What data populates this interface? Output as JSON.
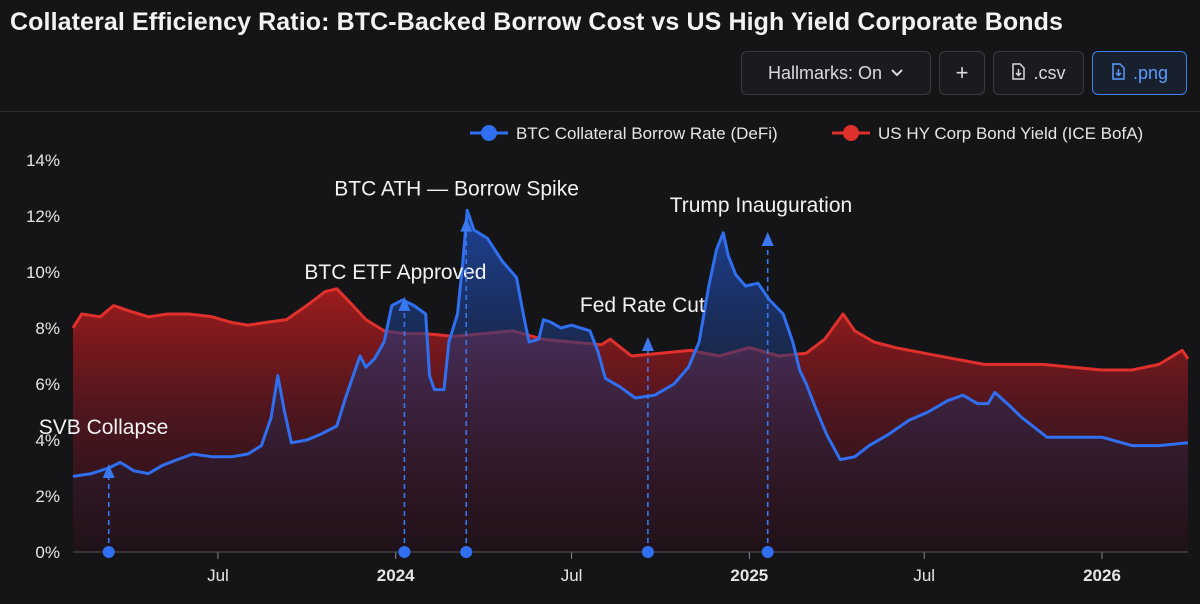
{
  "header": {
    "title": "Collateral Efficiency Ratio: BTC-Backed Borrow Cost vs US High Yield Corporate Bonds"
  },
  "toolbar": {
    "hallmarks_label": "Hallmarks: On",
    "hallmarks_icon": "chevron-down-icon",
    "add_label": "+",
    "csv_label": ".csv",
    "png_label": ".png",
    "download_icon": "download-icon"
  },
  "colors": {
    "background": "#151518",
    "btc": "#2f6ff0",
    "hy": "#e0302c",
    "accent": "#3f7fe8"
  },
  "chart_data": {
    "type": "area",
    "title": "Collateral Efficiency Ratio: BTC-Backed Borrow Cost vs US High Yield Corporate Bonds",
    "x_range": [
      "2023-02-01",
      "2026-03-31"
    ],
    "y_range": [
      0,
      14
    ],
    "y_ticks": [
      "0%",
      "2%",
      "4%",
      "6%",
      "8%",
      "10%",
      "12%",
      "14%"
    ],
    "y_tick_values": [
      0,
      2,
      4,
      6,
      8,
      10,
      12,
      14
    ],
    "x_ticks": [
      {
        "label": "Jul",
        "date": "2023-07-01",
        "bold": false
      },
      {
        "label": "2024",
        "date": "2024-01-01",
        "bold": true
      },
      {
        "label": "Jul",
        "date": "2024-07-01",
        "bold": false
      },
      {
        "label": "2025",
        "date": "2025-01-01",
        "bold": true
      },
      {
        "label": "Jul",
        "date": "2025-07-01",
        "bold": false
      },
      {
        "label": "2026",
        "date": "2026-01-01",
        "bold": true
      }
    ],
    "legend_position": "top-right",
    "grid": false,
    "series": [
      {
        "name": "BTC Collateral Borrow Rate (DeFi)",
        "color": "#2f6ff0",
        "points": [
          [
            "2023-02-01",
            2.7
          ],
          [
            "2023-02-20",
            2.8
          ],
          [
            "2023-03-10",
            3.0
          ],
          [
            "2023-03-22",
            3.2
          ],
          [
            "2023-04-05",
            2.9
          ],
          [
            "2023-04-20",
            2.8
          ],
          [
            "2023-05-05",
            3.1
          ],
          [
            "2023-05-20",
            3.3
          ],
          [
            "2023-06-05",
            3.5
          ],
          [
            "2023-06-25",
            3.4
          ],
          [
            "2023-07-15",
            3.4
          ],
          [
            "2023-08-01",
            3.5
          ],
          [
            "2023-08-15",
            3.8
          ],
          [
            "2023-08-25",
            4.8
          ],
          [
            "2023-09-01",
            6.3
          ],
          [
            "2023-09-08",
            5.0
          ],
          [
            "2023-09-15",
            3.9
          ],
          [
            "2023-10-01",
            4.0
          ],
          [
            "2023-10-15",
            4.2
          ],
          [
            "2023-11-01",
            4.5
          ],
          [
            "2023-11-10",
            5.5
          ],
          [
            "2023-11-20",
            6.5
          ],
          [
            "2023-11-25",
            7.0
          ],
          [
            "2023-12-01",
            6.6
          ],
          [
            "2023-12-10",
            6.9
          ],
          [
            "2023-12-20",
            7.5
          ],
          [
            "2023-12-28",
            8.8
          ],
          [
            "2024-01-08",
            9.0
          ],
          [
            "2024-01-20",
            8.8
          ],
          [
            "2024-02-01",
            8.5
          ],
          [
            "2024-02-05",
            6.3
          ],
          [
            "2024-02-10",
            5.8
          ],
          [
            "2024-02-20",
            5.8
          ],
          [
            "2024-02-25",
            7.5
          ],
          [
            "2024-03-05",
            8.5
          ],
          [
            "2024-03-10",
            10.2
          ],
          [
            "2024-03-15",
            12.2
          ],
          [
            "2024-03-22",
            11.5
          ],
          [
            "2024-04-05",
            11.2
          ],
          [
            "2024-04-20",
            10.4
          ],
          [
            "2024-05-05",
            9.8
          ],
          [
            "2024-05-12",
            8.5
          ],
          [
            "2024-05-18",
            7.5
          ],
          [
            "2024-05-28",
            7.6
          ],
          [
            "2024-06-02",
            8.3
          ],
          [
            "2024-06-10",
            8.2
          ],
          [
            "2024-06-20",
            8.0
          ],
          [
            "2024-07-01",
            8.1
          ],
          [
            "2024-07-20",
            7.9
          ],
          [
            "2024-07-28",
            7.2
          ],
          [
            "2024-08-05",
            6.2
          ],
          [
            "2024-08-20",
            5.9
          ],
          [
            "2024-09-05",
            5.5
          ],
          [
            "2024-09-25",
            5.6
          ],
          [
            "2024-10-15",
            6.0
          ],
          [
            "2024-10-30",
            6.6
          ],
          [
            "2024-11-10",
            7.5
          ],
          [
            "2024-11-20",
            9.5
          ],
          [
            "2024-11-28",
            10.8
          ],
          [
            "2024-12-05",
            11.4
          ],
          [
            "2024-12-10",
            10.6
          ],
          [
            "2024-12-18",
            9.9
          ],
          [
            "2024-12-28",
            9.5
          ],
          [
            "2025-01-10",
            9.6
          ],
          [
            "2025-01-22",
            9.0
          ],
          [
            "2025-02-05",
            8.5
          ],
          [
            "2025-02-15",
            7.5
          ],
          [
            "2025-02-22",
            6.5
          ],
          [
            "2025-03-01",
            6.0
          ],
          [
            "2025-03-10",
            5.2
          ],
          [
            "2025-03-22",
            4.2
          ],
          [
            "2025-04-05",
            3.3
          ],
          [
            "2025-04-20",
            3.4
          ],
          [
            "2025-05-05",
            3.8
          ],
          [
            "2025-05-25",
            4.2
          ],
          [
            "2025-06-15",
            4.7
          ],
          [
            "2025-07-05",
            5.0
          ],
          [
            "2025-07-25",
            5.4
          ],
          [
            "2025-08-10",
            5.6
          ],
          [
            "2025-08-25",
            5.3
          ],
          [
            "2025-09-05",
            5.3
          ],
          [
            "2025-09-12",
            5.7
          ],
          [
            "2025-09-25",
            5.3
          ],
          [
            "2025-10-10",
            4.8
          ],
          [
            "2025-10-25",
            4.4
          ],
          [
            "2025-11-05",
            4.1
          ],
          [
            "2025-12-01",
            4.1
          ],
          [
            "2026-01-01",
            4.1
          ],
          [
            "2026-02-01",
            3.8
          ],
          [
            "2026-03-01",
            3.8
          ],
          [
            "2026-03-31",
            3.9
          ]
        ]
      },
      {
        "name": "US HY Corp Bond Yield (ICE BofA)",
        "color": "#e0302c",
        "points": [
          [
            "2023-02-01",
            8.0
          ],
          [
            "2023-02-10",
            8.5
          ],
          [
            "2023-03-01",
            8.4
          ],
          [
            "2023-03-15",
            8.8
          ],
          [
            "2023-04-01",
            8.6
          ],
          [
            "2023-04-20",
            8.4
          ],
          [
            "2023-05-10",
            8.5
          ],
          [
            "2023-06-01",
            8.5
          ],
          [
            "2023-06-25",
            8.4
          ],
          [
            "2023-07-15",
            8.2
          ],
          [
            "2023-08-01",
            8.1
          ],
          [
            "2023-08-20",
            8.2
          ],
          [
            "2023-09-10",
            8.3
          ],
          [
            "2023-10-01",
            8.8
          ],
          [
            "2023-10-20",
            9.3
          ],
          [
            "2023-11-01",
            9.4
          ],
          [
            "2023-11-15",
            8.9
          ],
          [
            "2023-12-01",
            8.3
          ],
          [
            "2023-12-20",
            7.9
          ],
          [
            "2024-01-10",
            7.8
          ],
          [
            "2024-02-01",
            7.8
          ],
          [
            "2024-03-01",
            7.7
          ],
          [
            "2024-04-01",
            7.8
          ],
          [
            "2024-05-01",
            7.9
          ],
          [
            "2024-06-01",
            7.6
          ],
          [
            "2024-07-01",
            7.5
          ],
          [
            "2024-08-01",
            7.4
          ],
          [
            "2024-08-10",
            7.6
          ],
          [
            "2024-09-01",
            7.0
          ],
          [
            "2024-10-01",
            7.1
          ],
          [
            "2024-11-01",
            7.2
          ],
          [
            "2024-12-01",
            7.0
          ],
          [
            "2025-01-01",
            7.3
          ],
          [
            "2025-02-01",
            7.0
          ],
          [
            "2025-03-01",
            7.1
          ],
          [
            "2025-03-20",
            7.6
          ],
          [
            "2025-04-08",
            8.5
          ],
          [
            "2025-04-20",
            7.9
          ],
          [
            "2025-05-10",
            7.5
          ],
          [
            "2025-06-01",
            7.3
          ],
          [
            "2025-07-01",
            7.1
          ],
          [
            "2025-08-01",
            6.9
          ],
          [
            "2025-09-01",
            6.7
          ],
          [
            "2025-10-01",
            6.7
          ],
          [
            "2025-11-01",
            6.7
          ],
          [
            "2025-12-01",
            6.6
          ],
          [
            "2026-01-01",
            6.5
          ],
          [
            "2026-02-01",
            6.5
          ],
          [
            "2026-03-01",
            6.7
          ],
          [
            "2026-03-25",
            7.2
          ],
          [
            "2026-03-31",
            6.9
          ]
        ]
      }
    ],
    "annotations": [
      {
        "label": "SVB Collapse",
        "date": "2023-03-10"
      },
      {
        "label": "BTC ETF Approved",
        "date": "2024-01-10"
      },
      {
        "label": "BTC ATH — Borrow Spike",
        "date": "2024-03-14"
      },
      {
        "label": "Fed Rate Cut",
        "date": "2024-09-18"
      },
      {
        "label": "Trump Inauguration",
        "date": "2025-01-20"
      }
    ]
  }
}
